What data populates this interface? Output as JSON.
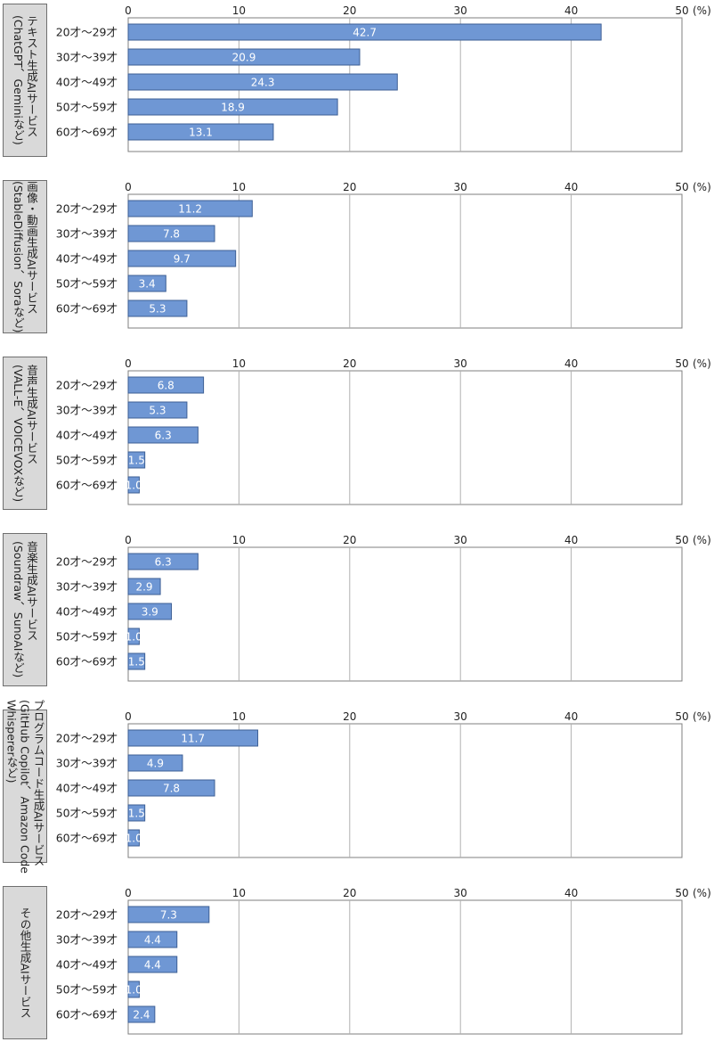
{
  "chart_data": [
    {
      "type": "bar",
      "orientation": "horizontal",
      "title": "テキスト生成AIサービス(ChatGPT、Geminiなど)",
      "categories": [
        "20才～29才",
        "30才～39才",
        "40才～49才",
        "50才～59才",
        "60才～69才"
      ],
      "values": [
        42.7,
        20.9,
        24.3,
        18.9,
        13.1
      ],
      "xlim": [
        0,
        50
      ],
      "xticks": [
        "0",
        "10",
        "20",
        "30",
        "40",
        "50"
      ],
      "unit": "(%)",
      "grid": true
    },
    {
      "type": "bar",
      "orientation": "horizontal",
      "title": "画像・動画生成AIサービス(StableDiffusion、Soraなど)",
      "categories": [
        "20才～29才",
        "30才～39才",
        "40才～49才",
        "50才～59才",
        "60才～69才"
      ],
      "values": [
        11.2,
        7.8,
        9.7,
        3.4,
        5.3
      ],
      "xlim": [
        0,
        50
      ],
      "xticks": [
        "0",
        "10",
        "20",
        "30",
        "40",
        "50"
      ],
      "unit": "(%)",
      "grid": true
    },
    {
      "type": "bar",
      "orientation": "horizontal",
      "title": "音声生成AIサービス(VALL-E、VOICEVOXなど)",
      "categories": [
        "20才～29才",
        "30才～39才",
        "40才～49才",
        "50才～59才",
        "60才～69才"
      ],
      "values": [
        6.8,
        5.3,
        6.3,
        1.5,
        1.0
      ],
      "xlim": [
        0,
        50
      ],
      "xticks": [
        "0",
        "10",
        "20",
        "30",
        "40",
        "50"
      ],
      "unit": "(%)",
      "grid": true
    },
    {
      "type": "bar",
      "orientation": "horizontal",
      "title": "音楽生成AIサービス(Soundraw、SunoAIなど)",
      "categories": [
        "20才～29才",
        "30才～39才",
        "40才～49才",
        "50才～59才",
        "60才～69才"
      ],
      "values": [
        6.3,
        2.9,
        3.9,
        1.0,
        1.5
      ],
      "xlim": [
        0,
        50
      ],
      "xticks": [
        "0",
        "10",
        "20",
        "30",
        "40",
        "50"
      ],
      "unit": "(%)",
      "grid": true
    },
    {
      "type": "bar",
      "orientation": "horizontal",
      "title": "プログラムコード生成AIサービス(GitHub Copilot、Amazon Code Whispererなど)",
      "categories": [
        "20才～29才",
        "30才～39才",
        "40才～49才",
        "50才～59才",
        "60才～69才"
      ],
      "values": [
        11.7,
        4.9,
        7.8,
        1.5,
        1.0
      ],
      "xlim": [
        0,
        50
      ],
      "xticks": [
        "0",
        "10",
        "20",
        "30",
        "40",
        "50"
      ],
      "unit": "(%)",
      "grid": true
    },
    {
      "type": "bar",
      "orientation": "horizontal",
      "title": "その他生成AIサービス",
      "categories": [
        "20才～29才",
        "30才～39才",
        "40才～49才",
        "50才～59才",
        "60才～69才"
      ],
      "values": [
        7.3,
        4.4,
        4.4,
        1.0,
        2.4
      ],
      "xlim": [
        0,
        50
      ],
      "xticks": [
        "0",
        "10",
        "20",
        "30",
        "40",
        "50"
      ],
      "unit": "(%)",
      "grid": true
    }
  ],
  "side_labels": [
    [
      "テキスト生成AIサービス",
      "(ChatGPT、Geminiなど)"
    ],
    [
      "画像・動画生成AIサービス",
      "(StableDiffusion、Soraなど)"
    ],
    [
      "音声生成AIサービス",
      "(VALL-E、VOICEVOXなど)"
    ],
    [
      "音楽生成AIサービス",
      "(Soundraw、SunoAIなど)"
    ],
    [
      "プログラムコード生成AIサービス",
      "(GitHub Copilot、Amazon Code",
      "Whispererなど)"
    ],
    [
      "その他生成AIサービス"
    ]
  ],
  "colors": {
    "bar_fill": "#6f97d4",
    "bar_stroke": "#3d5f95",
    "grid": "#b0b0b0",
    "axis": "#7f7f7f",
    "text": "#222222",
    "box_fill": "#d9d9d9"
  }
}
